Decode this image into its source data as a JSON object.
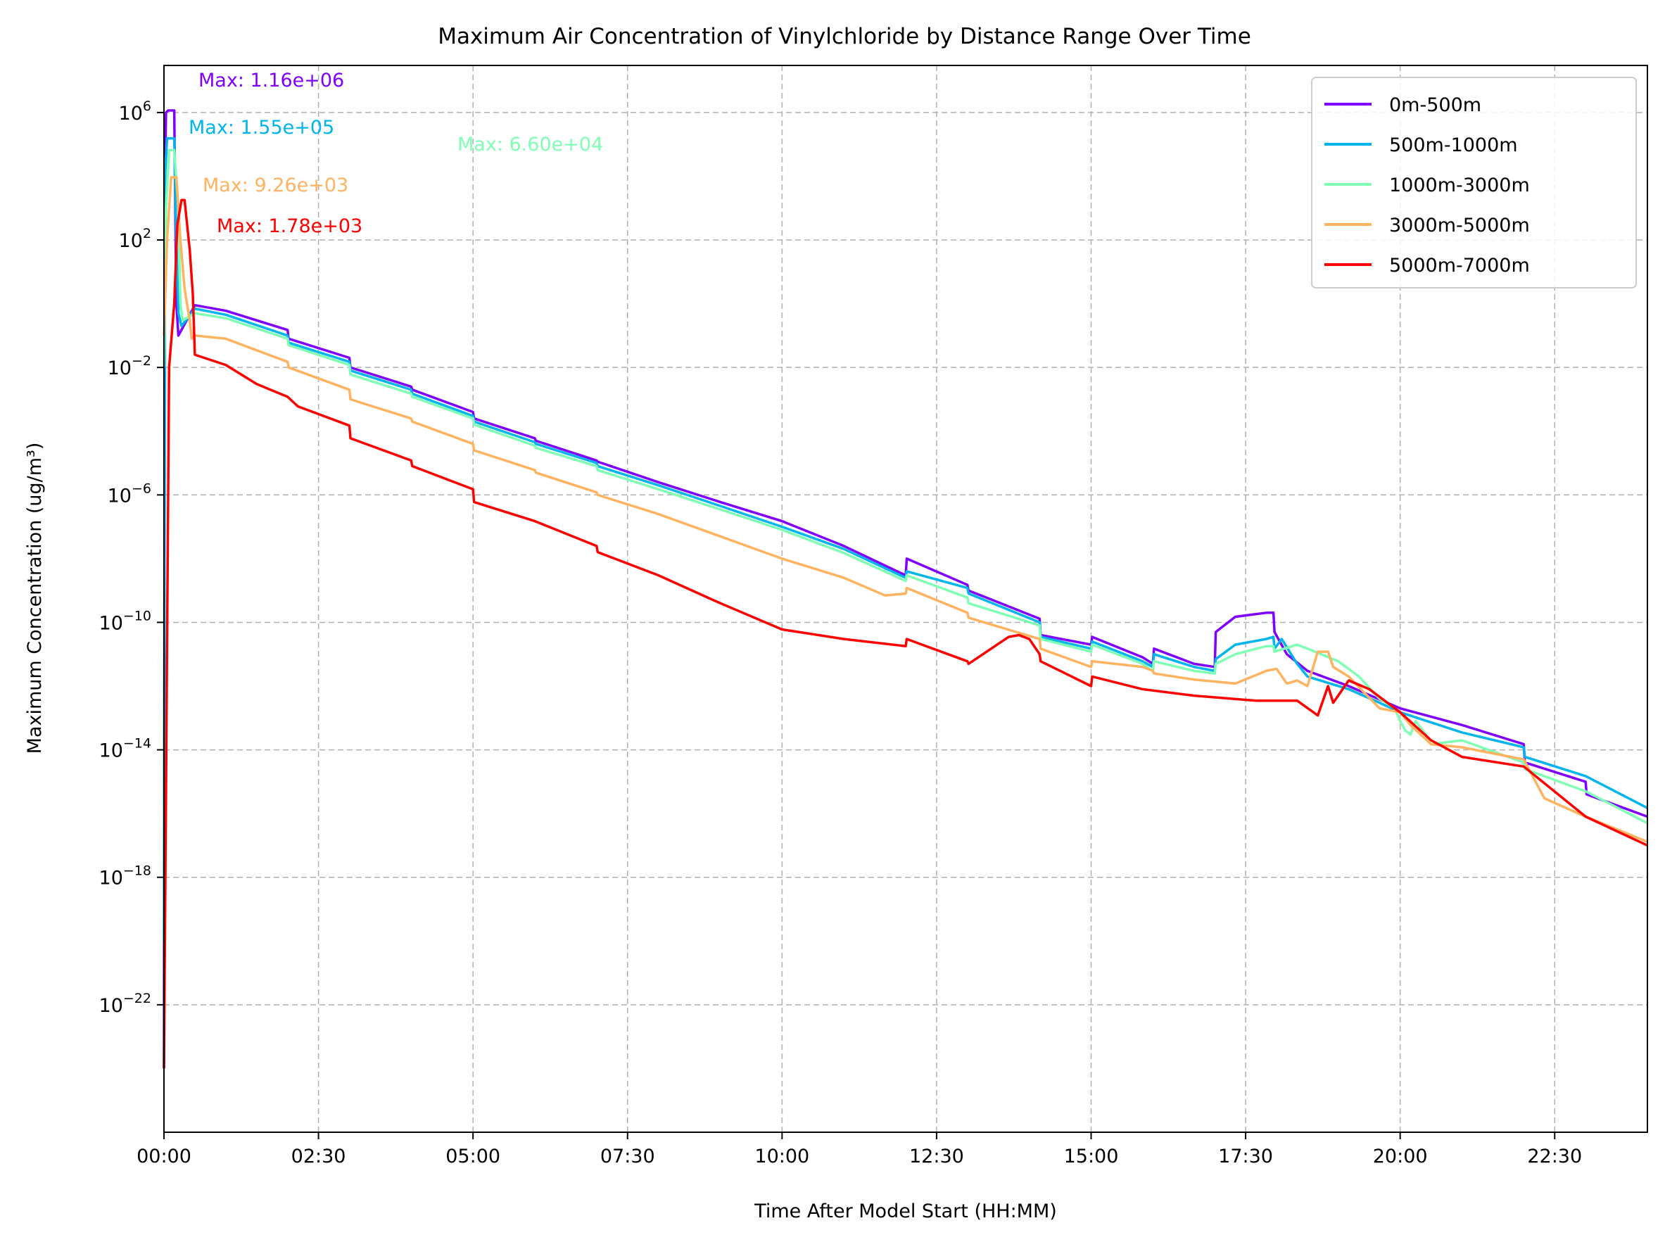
{
  "chart_data": {
    "type": "line",
    "title": "Maximum Air Concentration of Vinylchloride by Distance Range Over Time",
    "xlabel": "Time After Model Start (HH:MM)",
    "ylabel": "Maximum Concentration (ug/m³)",
    "y_scale": "log",
    "grid": true,
    "legend_position": "top-right",
    "x_unit": "minutes",
    "xlim": [
      0,
      1440
    ],
    "ylim": [
      1e-26,
      30000000.0
    ],
    "x_ticks": [
      {
        "value": 0,
        "label": "00:00"
      },
      {
        "value": 150,
        "label": "02:30"
      },
      {
        "value": 300,
        "label": "05:00"
      },
      {
        "value": 450,
        "label": "07:30"
      },
      {
        "value": 600,
        "label": "10:00"
      },
      {
        "value": 750,
        "label": "12:30"
      },
      {
        "value": 900,
        "label": "15:00"
      },
      {
        "value": 1050,
        "label": "17:30"
      },
      {
        "value": 1200,
        "label": "20:00"
      },
      {
        "value": 1350,
        "label": "22:30"
      }
    ],
    "y_ticks": [
      {
        "exp": 6
      },
      {
        "exp": 2
      },
      {
        "exp": -2
      },
      {
        "exp": -6
      },
      {
        "exp": -10
      },
      {
        "exp": -14
      },
      {
        "exp": -18
      },
      {
        "exp": -22
      }
    ],
    "series": [
      {
        "name": "0m-500m",
        "color": "#8000ff",
        "max_label": "Max: 1.16e+06",
        "points": [
          [
            0,
            1e-24
          ],
          [
            1,
            10000.0
          ],
          [
            2,
            1000000.0
          ],
          [
            4,
            1160000.0
          ],
          [
            10,
            1160000.0
          ],
          [
            11,
            1000.0
          ],
          [
            12,
            1
          ],
          [
            14,
            0.1
          ],
          [
            30,
            0.9
          ],
          [
            60,
            0.6
          ],
          [
            120,
            0.15
          ],
          [
            121,
            0.08
          ],
          [
            180,
            0.02
          ],
          [
            181,
            0.01
          ],
          [
            240,
            0.0025
          ],
          [
            241,
            0.002
          ],
          [
            300,
            0.0004
          ],
          [
            301,
            0.00025
          ],
          [
            360,
            6e-05
          ],
          [
            361,
            5e-05
          ],
          [
            420,
            1.2e-05
          ],
          [
            421,
            1.1e-05
          ],
          [
            480,
            2.5e-06
          ],
          [
            540,
            6e-07
          ],
          [
            600,
            1.5e-07
          ],
          [
            660,
            2.5e-08
          ],
          [
            720,
            3e-09
          ],
          [
            721,
            1e-08
          ],
          [
            780,
            1.5e-09
          ],
          [
            781,
            1e-09
          ],
          [
            850,
            1.3e-10
          ],
          [
            851,
            4e-11
          ],
          [
            900,
            2e-11
          ],
          [
            901,
            3.5e-11
          ],
          [
            950,
            8e-12
          ],
          [
            960,
            5e-12
          ],
          [
            961,
            1.5e-11
          ],
          [
            1000,
            5e-12
          ],
          [
            1020,
            4e-12
          ],
          [
            1021,
            5e-11
          ],
          [
            1040,
            1.5e-10
          ],
          [
            1070,
            2e-10
          ],
          [
            1077,
            2e-10
          ],
          [
            1078,
            5e-11
          ],
          [
            1090,
            1e-11
          ],
          [
            1110,
            3e-12
          ],
          [
            1150,
            1e-12
          ],
          [
            1200,
            2e-13
          ],
          [
            1260,
            6e-14
          ],
          [
            1320,
            1.5e-14
          ],
          [
            1321,
            4e-15
          ],
          [
            1380,
            1e-15
          ],
          [
            1381,
            4e-16
          ],
          [
            1440,
            8e-17
          ]
        ]
      },
      {
        "name": "500m-1000m",
        "color": "#00b5eb",
        "max_label": "Max: 1.55e+05",
        "points": [
          [
            0,
            1e-20
          ],
          [
            1,
            10000.0
          ],
          [
            3,
            155000.0
          ],
          [
            10,
            155000.0
          ],
          [
            12,
            100.0
          ],
          [
            14,
            0.5
          ],
          [
            17,
            0.2
          ],
          [
            30,
            0.7
          ],
          [
            60,
            0.45
          ],
          [
            120,
            0.1
          ],
          [
            121,
            0.06
          ],
          [
            180,
            0.015
          ],
          [
            181,
            0.008
          ],
          [
            240,
            0.002
          ],
          [
            241,
            0.0015
          ],
          [
            300,
            0.0003
          ],
          [
            301,
            0.0002
          ],
          [
            360,
            4.5e-05
          ],
          [
            361,
            4e-05
          ],
          [
            420,
            1e-05
          ],
          [
            421,
            8e-06
          ],
          [
            480,
            2e-06
          ],
          [
            540,
            4.5e-07
          ],
          [
            600,
            1e-07
          ],
          [
            660,
            2e-08
          ],
          [
            720,
            2.5e-09
          ],
          [
            721,
            4e-09
          ],
          [
            780,
            1.2e-09
          ],
          [
            781,
            8e-10
          ],
          [
            850,
            1e-10
          ],
          [
            851,
            3.5e-11
          ],
          [
            900,
            1.5e-11
          ],
          [
            901,
            2.5e-11
          ],
          [
            950,
            6e-12
          ],
          [
            960,
            4e-12
          ],
          [
            961,
            1e-11
          ],
          [
            1000,
            4e-12
          ],
          [
            1020,
            3e-12
          ],
          [
            1021,
            7e-12
          ],
          [
            1040,
            2e-11
          ],
          [
            1070,
            3e-11
          ],
          [
            1077,
            3.5e-11
          ],
          [
            1078,
            1.5e-11
          ],
          [
            1085,
            3e-11
          ],
          [
            1100,
            5e-12
          ],
          [
            1110,
            2e-12
          ],
          [
            1150,
            8e-13
          ],
          [
            1180,
            3e-13
          ],
          [
            1200,
            1.5e-13
          ],
          [
            1260,
            3.5e-14
          ],
          [
            1320,
            1.2e-14
          ],
          [
            1321,
            6e-15
          ],
          [
            1380,
            1.5e-15
          ],
          [
            1440,
            1.5e-16
          ]
        ]
      },
      {
        "name": "1000m-3000m",
        "color": "#80ffb4",
        "max_label": "Max: 6.60e+04",
        "points": [
          [
            0,
            0.01
          ],
          [
            2,
            1000.0
          ],
          [
            5,
            66000.0
          ],
          [
            10,
            66000.0
          ],
          [
            14,
            1000.0
          ],
          [
            16,
            1
          ],
          [
            18,
            0.3
          ],
          [
            30,
            0.5
          ],
          [
            60,
            0.35
          ],
          [
            120,
            0.08
          ],
          [
            121,
            0.05
          ],
          [
            180,
            0.012
          ],
          [
            181,
            0.006
          ],
          [
            240,
            0.0015
          ],
          [
            241,
            0.0012
          ],
          [
            300,
            0.00025
          ],
          [
            301,
            0.00016
          ],
          [
            360,
            3.5e-05
          ],
          [
            361,
            3e-05
          ],
          [
            420,
            8e-06
          ],
          [
            421,
            6e-06
          ],
          [
            480,
            1.5e-06
          ],
          [
            540,
            3.5e-07
          ],
          [
            600,
            8e-08
          ],
          [
            660,
            1.5e-08
          ],
          [
            720,
            2e-09
          ],
          [
            721,
            3e-09
          ],
          [
            780,
            6e-10
          ],
          [
            781,
            4e-10
          ],
          [
            850,
            8e-11
          ],
          [
            851,
            3e-11
          ],
          [
            900,
            1.2e-11
          ],
          [
            901,
            2e-11
          ],
          [
            950,
            5e-12
          ],
          [
            960,
            3e-12
          ],
          [
            961,
            6e-12
          ],
          [
            1000,
            3e-12
          ],
          [
            1020,
            2.5e-12
          ],
          [
            1021,
            5e-12
          ],
          [
            1040,
            1e-11
          ],
          [
            1070,
            1.8e-11
          ],
          [
            1077,
            1.8e-11
          ],
          [
            1078,
            1.2e-11
          ],
          [
            1100,
            2e-11
          ],
          [
            1110,
            1.5e-11
          ],
          [
            1140,
            6e-12
          ],
          [
            1160,
            2e-12
          ],
          [
            1180,
            4e-13
          ],
          [
            1195,
            2e-13
          ],
          [
            1200,
            8e-14
          ],
          [
            1205,
            4e-14
          ],
          [
            1210,
            3e-14
          ],
          [
            1215,
            8e-14
          ],
          [
            1225,
            3e-14
          ],
          [
            1230,
            1.5e-14
          ],
          [
            1260,
            2e-14
          ],
          [
            1320,
            4e-15
          ],
          [
            1321,
            2.5e-15
          ],
          [
            1380,
            5e-16
          ],
          [
            1440,
            5e-17
          ]
        ]
      },
      {
        "name": "3000m-5000m",
        "color": "#ffb360",
        "max_label": "Max: 9.26e+03",
        "points": [
          [
            0,
            0.1
          ],
          [
            3,
            100.0
          ],
          [
            7,
            9260.0
          ],
          [
            12,
            9260.0
          ],
          [
            16,
            100.0
          ],
          [
            20,
            3
          ],
          [
            25,
            0.3
          ],
          [
            27,
            0.08
          ],
          [
            30,
            0.1
          ],
          [
            60,
            0.08
          ],
          [
            120,
            0.015
          ],
          [
            121,
            0.01
          ],
          [
            180,
            0.002
          ],
          [
            181,
            0.001
          ],
          [
            240,
            0.00025
          ],
          [
            241,
            0.0002
          ],
          [
            300,
            4e-05
          ],
          [
            301,
            2.5e-05
          ],
          [
            360,
            6e-06
          ],
          [
            361,
            5e-06
          ],
          [
            420,
            1.2e-06
          ],
          [
            421,
            1e-06
          ],
          [
            480,
            2.5e-07
          ],
          [
            540,
            5e-08
          ],
          [
            600,
            1e-08
          ],
          [
            660,
            2.5e-09
          ],
          [
            700,
            7e-10
          ],
          [
            720,
            8e-10
          ],
          [
            721,
            1.2e-09
          ],
          [
            780,
            2e-10
          ],
          [
            781,
            1.4e-10
          ],
          [
            850,
            3e-11
          ],
          [
            851,
            1.5e-11
          ],
          [
            900,
            4e-12
          ],
          [
            901,
            6e-12
          ],
          [
            950,
            4e-12
          ],
          [
            960,
            3e-12
          ],
          [
            961,
            2.5e-12
          ],
          [
            1000,
            1.6e-12
          ],
          [
            1040,
            1.2e-12
          ],
          [
            1070,
            3e-12
          ],
          [
            1080,
            3.5e-12
          ],
          [
            1090,
            1.2e-12
          ],
          [
            1100,
            1.5e-12
          ],
          [
            1110,
            1e-12
          ],
          [
            1120,
            1.2e-11
          ],
          [
            1130,
            1.2e-11
          ],
          [
            1135,
            4e-12
          ],
          [
            1150,
            2e-12
          ],
          [
            1180,
            2e-13
          ],
          [
            1200,
            1.5e-13
          ],
          [
            1210,
            6e-14
          ],
          [
            1230,
            1.5e-14
          ],
          [
            1260,
            1.2e-14
          ],
          [
            1320,
            5e-15
          ],
          [
            1340,
            3e-16
          ],
          [
            1380,
            8e-17
          ],
          [
            1440,
            1.3e-17
          ]
        ]
      },
      {
        "name": "5000m-7000m",
        "color": "#ff0000",
        "max_label": "Max: 1.78e+03",
        "points": [
          [
            0,
            1e-24
          ],
          [
            5,
            0.01
          ],
          [
            10,
            1
          ],
          [
            13,
            300.0
          ],
          [
            17,
            1780.0
          ],
          [
            20,
            1780.0
          ],
          [
            25,
            50.0
          ],
          [
            28,
            2
          ],
          [
            30,
            0.025
          ],
          [
            60,
            0.012
          ],
          [
            90,
            0.003
          ],
          [
            120,
            0.0012
          ],
          [
            130,
            0.0006
          ],
          [
            180,
            0.00015
          ],
          [
            181,
            6e-05
          ],
          [
            240,
            1.2e-05
          ],
          [
            241,
            8e-06
          ],
          [
            300,
            1.5e-06
          ],
          [
            301,
            6e-07
          ],
          [
            360,
            1.5e-07
          ],
          [
            420,
            2.5e-08
          ],
          [
            421,
            1.6e-08
          ],
          [
            480,
            3e-09
          ],
          [
            540,
            4e-10
          ],
          [
            600,
            6e-11
          ],
          [
            660,
            3e-11
          ],
          [
            720,
            1.8e-11
          ],
          [
            721,
            3e-11
          ],
          [
            780,
            6e-12
          ],
          [
            781,
            5e-12
          ],
          [
            820,
            3.5e-11
          ],
          [
            830,
            4e-11
          ],
          [
            840,
            3e-11
          ],
          [
            850,
            1e-11
          ],
          [
            851,
            6e-12
          ],
          [
            900,
            1e-12
          ],
          [
            901,
            2e-12
          ],
          [
            950,
            8e-13
          ],
          [
            1000,
            5e-13
          ],
          [
            1060,
            3.5e-13
          ],
          [
            1100,
            3.5e-13
          ],
          [
            1120,
            1.2e-13
          ],
          [
            1130,
            1e-12
          ],
          [
            1135,
            3e-13
          ],
          [
            1150,
            1.5e-12
          ],
          [
            1170,
            8e-13
          ],
          [
            1200,
            1.5e-13
          ],
          [
            1230,
            2e-14
          ],
          [
            1260,
            6e-15
          ],
          [
            1320,
            3e-15
          ],
          [
            1380,
            8e-17
          ],
          [
            1440,
            1e-17
          ]
        ]
      }
    ]
  }
}
